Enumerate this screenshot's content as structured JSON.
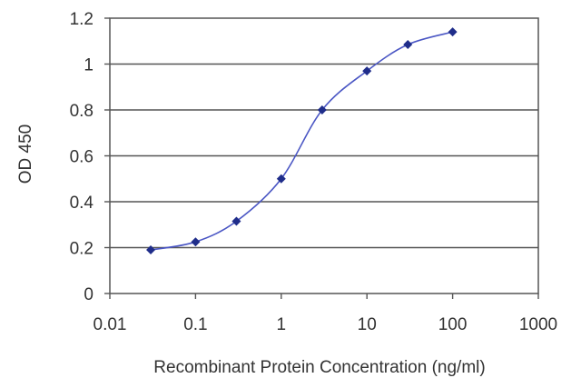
{
  "chart_data": {
    "type": "line",
    "title": "",
    "xlabel": "Recombinant Protein Concentration (ng/ml)",
    "ylabel": "OD 450",
    "x_scale": "log",
    "xlim": [
      0.01,
      1000
    ],
    "ylim": [
      0,
      1.2
    ],
    "x_ticks": [
      0.01,
      0.1,
      1,
      10,
      100,
      1000
    ],
    "x_tick_labels": [
      "0.01",
      "0.1",
      "1",
      "10",
      "100",
      "1000"
    ],
    "y_ticks": [
      0,
      0.2,
      0.4,
      0.6,
      0.8,
      1,
      1.2
    ],
    "y_tick_labels": [
      "0",
      "0.2",
      "0.4",
      "0.6",
      "0.8",
      "1",
      "1.2"
    ],
    "grid": "horizontal",
    "legend": "none",
    "series": [
      {
        "x": [
          0.03,
          0.1,
          0.3,
          1,
          3,
          10,
          30,
          100
        ],
        "y": [
          0.19,
          0.225,
          0.315,
          0.5,
          0.8,
          0.97,
          1.085,
          1.14
        ],
        "color": "#1f2d8a"
      }
    ]
  }
}
